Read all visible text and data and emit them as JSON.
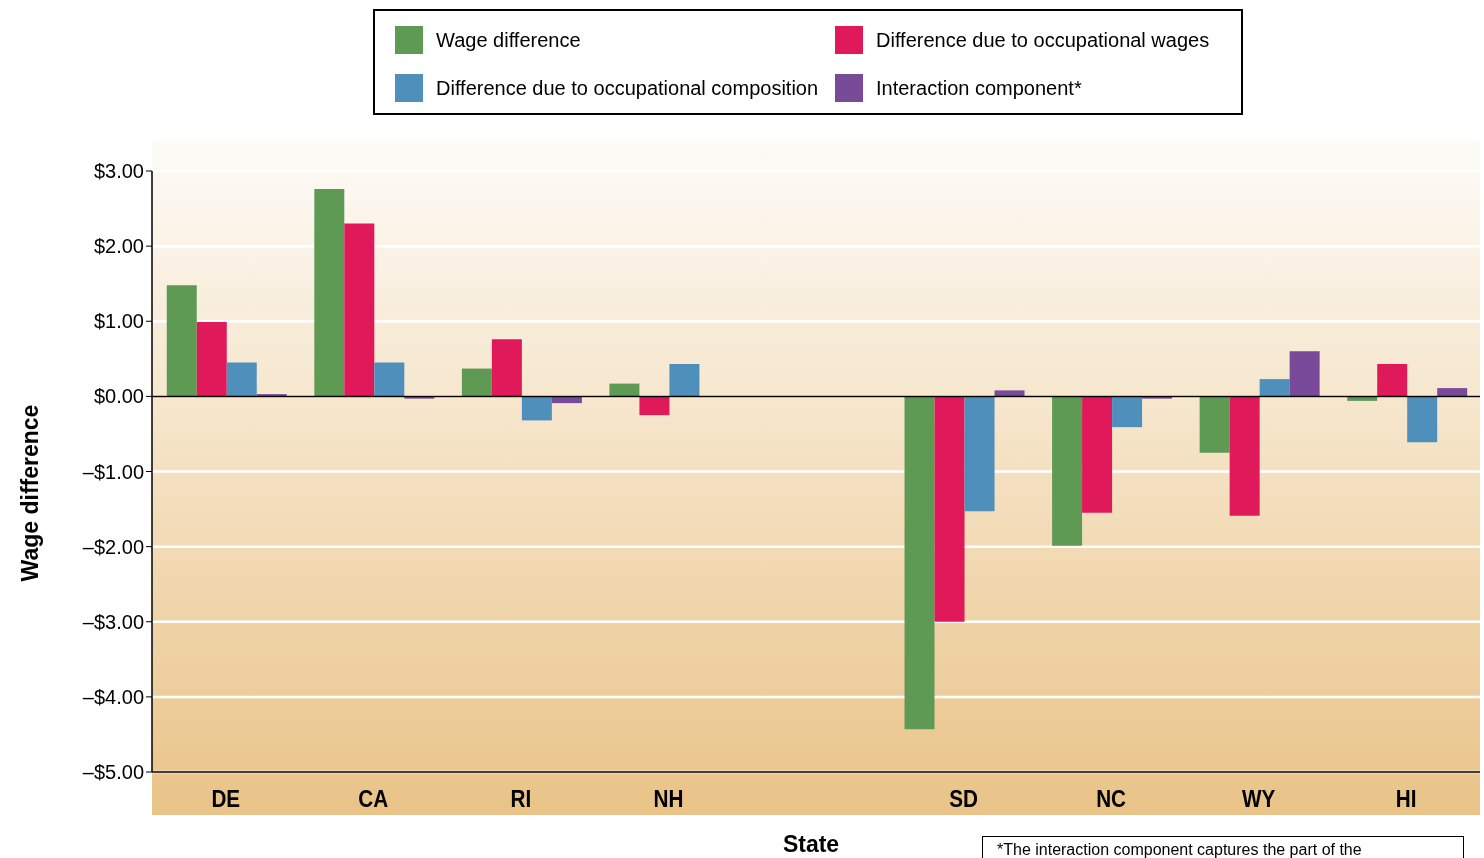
{
  "chart_data": {
    "type": "bar",
    "xlabel": "State",
    "ylabel": "Wage difference",
    "categories": [
      "DE",
      "CA",
      "RI",
      "NH",
      null,
      "SD",
      "NC",
      "WY",
      "HI"
    ],
    "series": [
      {
        "name": "Wage difference",
        "color": "#5f9a55",
        "values": [
          1.48,
          2.76,
          0.37,
          0.17,
          null,
          -4.43,
          -1.99,
          -0.75,
          -0.06
        ]
      },
      {
        "name": "Difference due to occupational wages",
        "color": "#e0195a",
        "values": [
          0.99,
          2.3,
          0.76,
          -0.25,
          null,
          -3.0,
          -1.55,
          -1.59,
          0.43
        ]
      },
      {
        "name": "Difference due to occupational composition",
        "color": "#4f8fbc",
        "values": [
          0.45,
          0.45,
          -0.32,
          0.43,
          null,
          -1.53,
          -0.41,
          0.23,
          -0.61
        ]
      },
      {
        "name": "Interaction component*",
        "color": "#7a4a9a",
        "values": [
          0.03,
          -0.03,
          -0.09,
          0,
          null,
          0.08,
          -0.03,
          0.6,
          0.11
        ]
      }
    ],
    "ylim": [
      -5,
      3
    ],
    "yticks": [
      {
        "value": 3,
        "label": "$3.00"
      },
      {
        "value": 2,
        "label": "$2.00"
      },
      {
        "value": 1,
        "label": "$1.00"
      },
      {
        "value": 0,
        "label": "$0.00"
      },
      {
        "value": -1,
        "label": "–$1.00"
      },
      {
        "value": -2,
        "label": "–$2.00"
      },
      {
        "value": -3,
        "label": "–$3.00"
      },
      {
        "value": -4,
        "label": "–$4.00"
      },
      {
        "value": -5,
        "label": "–$5.00"
      }
    ],
    "grid": "y",
    "legend": "top",
    "annotations": [
      "*The interaction component captures the part of the"
    ]
  }
}
